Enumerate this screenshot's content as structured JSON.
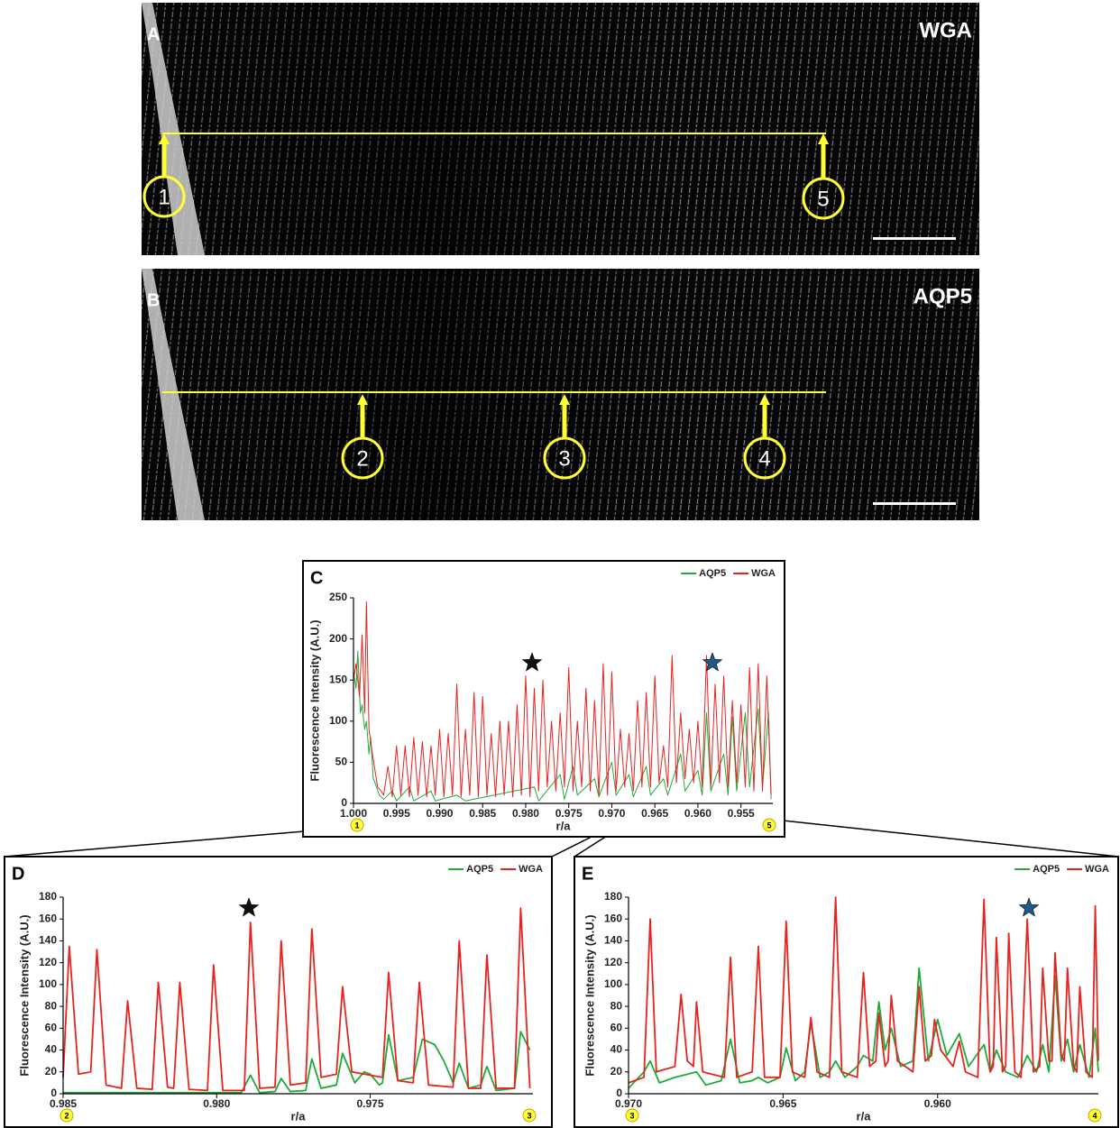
{
  "images": [
    {
      "label": "A",
      "stain": "WGA",
      "markers": [
        "1",
        "5"
      ]
    },
    {
      "label": "B",
      "stain": "AQP5",
      "markers": [
        "2",
        "3",
        "4"
      ]
    }
  ],
  "chart_data": [
    {
      "type": "line",
      "panel": "C",
      "x_label": "r/a",
      "y_label": "Fluorescence Intensity (A.U.)",
      "x_start_marker": "1",
      "x_end_marker": "5",
      "legend": "top-right",
      "xlim": [
        1.0,
        0.9513
      ],
      "ylim": [
        0,
        250
      ],
      "xticks": [
        {
          "value": 1.0,
          "label": "1.000"
        },
        0.995,
        {
          "value": 0.99,
          "label": "0.990"
        },
        0.985,
        {
          "value": 0.98,
          "label": "0.980"
        },
        0.975,
        {
          "value": 0.97,
          "label": "0.970"
        },
        0.965,
        {
          "value": 0.96,
          "label": "0.960"
        },
        0.955
      ],
      "yticks": [
        0,
        50,
        100,
        150,
        200,
        250
      ],
      "series": [
        {
          "name": "AQP5",
          "color": "#1faa3a",
          "x": [
            1.0,
            0.9997,
            0.9995,
            0.9992,
            0.999,
            0.9987,
            0.9985,
            0.9982,
            0.998,
            0.9977,
            0.9975,
            0.997,
            0.9965,
            0.9955,
            0.995,
            0.9935,
            0.993,
            0.991,
            0.9905,
            0.988,
            0.987,
            0.979,
            0.9785,
            0.976,
            0.9755,
            0.9745,
            0.974,
            0.972,
            0.9715,
            0.97,
            0.9695,
            0.968,
            0.9675,
            0.966,
            0.9655,
            0.964,
            0.9635,
            0.962,
            0.9615,
            0.96,
            0.9595,
            0.959,
            0.9585,
            0.957,
            0.9565,
            0.956,
            0.9555,
            0.9545,
            0.954,
            0.953,
            0.9525,
            0.9518,
            0.9515
          ],
          "values": [
            160,
            140,
            185,
            110,
            120,
            90,
            100,
            60,
            80,
            30,
            25,
            10,
            5,
            15,
            3,
            20,
            3,
            15,
            3,
            10,
            3,
            20,
            3,
            35,
            5,
            45,
            10,
            30,
            8,
            50,
            10,
            35,
            8,
            45,
            10,
            30,
            10,
            60,
            15,
            40,
            10,
            110,
            15,
            60,
            10,
            105,
            15,
            110,
            20,
            115,
            20,
            110,
            5
          ]
        },
        {
          "name": "WGA",
          "color": "#e8231f",
          "x": [
            1.0,
            0.9997,
            0.9993,
            0.999,
            0.9987,
            0.9985,
            0.9982,
            0.9978,
            0.9975,
            0.9972,
            0.9968,
            0.9965,
            0.996,
            0.9955,
            0.995,
            0.9945,
            0.994,
            0.9935,
            0.993,
            0.9925,
            0.992,
            0.9915,
            0.991,
            0.9905,
            0.99,
            0.9895,
            0.989,
            0.9885,
            0.988,
            0.9875,
            0.987,
            0.9865,
            0.986,
            0.9855,
            0.985,
            0.9845,
            0.984,
            0.9835,
            0.983,
            0.9825,
            0.982,
            0.9815,
            0.981,
            0.9805,
            0.98,
            0.9795,
            0.979,
            0.9785,
            0.978,
            0.9775,
            0.977,
            0.9765,
            0.976,
            0.9755,
            0.975,
            0.9745,
            0.974,
            0.9735,
            0.973,
            0.9725,
            0.972,
            0.9715,
            0.971,
            0.9705,
            0.97,
            0.9695,
            0.969,
            0.9685,
            0.968,
            0.9675,
            0.967,
            0.9665,
            0.966,
            0.9655,
            0.965,
            0.9645,
            0.964,
            0.9635,
            0.963,
            0.9625,
            0.962,
            0.9615,
            0.961,
            0.9605,
            0.96,
            0.9595,
            0.959,
            0.9585,
            0.958,
            0.9575,
            0.957,
            0.9565,
            0.956,
            0.9555,
            0.955,
            0.9545,
            0.954,
            0.9535,
            0.953,
            0.9525,
            0.952,
            0.9515
          ],
          "values": [
            150,
            170,
            130,
            205,
            110,
            245,
            90,
            60,
            40,
            20,
            15,
            10,
            45,
            8,
            70,
            10,
            70,
            8,
            80,
            10,
            75,
            8,
            70,
            10,
            90,
            8,
            85,
            10,
            145,
            8,
            90,
            10,
            135,
            8,
            130,
            10,
            85,
            8,
            100,
            10,
            100,
            8,
            120,
            10,
            155,
            8,
            140,
            15,
            150,
            20,
            100,
            15,
            110,
            20,
            165,
            15,
            100,
            20,
            140,
            15,
            125,
            10,
            170,
            10,
            160,
            15,
            90,
            20,
            85,
            15,
            125,
            20,
            135,
            20,
            155,
            25,
            70,
            20,
            180,
            25,
            110,
            30,
            90,
            25,
            100,
            20,
            180,
            20,
            145,
            25,
            155,
            20,
            125,
            25,
            120,
            20,
            165,
            15,
            170,
            15,
            155,
            10
          ]
        }
      ]
    },
    {
      "type": "line",
      "panel": "D",
      "x_label": "r/a",
      "y_label": "Fluorescence Intensity (A.U.)",
      "x_start_marker": "2",
      "x_end_marker": "3",
      "legend": "top-right",
      "xlim": [
        0.985,
        0.9697
      ],
      "ylim": [
        0,
        180
      ],
      "xticks": [
        0.985,
        {
          "value": 0.98,
          "label": "0.980"
        },
        0.975
      ],
      "yticks": [
        0,
        20,
        40,
        60,
        80,
        100,
        120,
        140,
        160,
        180
      ],
      "series": [
        {
          "name": "AQP5",
          "color": "#1faa3a",
          "x": [
            0.985,
            0.983,
            0.9792,
            0.9789,
            0.9786,
            0.9781,
            0.9779,
            0.9776,
            0.9771,
            0.9769,
            0.9766,
            0.9761,
            0.9759,
            0.9755,
            0.9752,
            0.975,
            0.9747,
            0.9746,
            0.9744,
            0.9741,
            0.9736,
            0.9733,
            0.9729,
            0.9726,
            0.9723,
            0.9721,
            0.9718,
            0.9714,
            0.9712,
            0.9709,
            0.9703,
            0.9701,
            0.9698
          ],
          "values": [
            1,
            1,
            1,
            17,
            1,
            2,
            14,
            2,
            3,
            32,
            5,
            8,
            37,
            10,
            20,
            18,
            8,
            10,
            54,
            12,
            15,
            50,
            45,
            30,
            10,
            28,
            5,
            8,
            25,
            3,
            5,
            57,
            40
          ]
        },
        {
          "name": "WGA",
          "color": "#e8231f",
          "x": [
            0.985,
            0.9848,
            0.9845,
            0.9841,
            0.9839,
            0.9836,
            0.9831,
            0.9829,
            0.9826,
            0.9821,
            0.9819,
            0.9816,
            0.9814,
            0.9812,
            0.9809,
            0.9803,
            0.9801,
            0.9798,
            0.9791,
            0.9789,
            0.9786,
            0.9781,
            0.9779,
            0.9776,
            0.9771,
            0.9769,
            0.9766,
            0.9761,
            0.9759,
            0.9756,
            0.9746,
            0.9744,
            0.9741,
            0.9736,
            0.9734,
            0.9731,
            0.9723,
            0.9721,
            0.9718,
            0.9714,
            0.9712,
            0.9709,
            0.9703,
            0.9701,
            0.9698
          ],
          "values": [
            15,
            135,
            18,
            20,
            132,
            8,
            5,
            85,
            5,
            4,
            102,
            6,
            5,
            102,
            4,
            3,
            118,
            3,
            3,
            157,
            5,
            6,
            140,
            8,
            10,
            151,
            15,
            18,
            98,
            20,
            15,
            111,
            12,
            10,
            102,
            8,
            6,
            140,
            5,
            5,
            127,
            5,
            5,
            170,
            5
          ]
        }
      ]
    },
    {
      "type": "line",
      "panel": "E",
      "x_label": "r/a",
      "y_label": "Fluorescence Intensity (A.U.)",
      "x_start_marker": "3",
      "x_end_marker": "4",
      "legend": "top-right",
      "xlim": [
        0.97,
        0.9548
      ],
      "ylim": [
        0,
        180
      ],
      "xticks": [
        {
          "value": 0.97,
          "label": "0.970"
        },
        0.965,
        {
          "value": 0.96,
          "label": "0.960"
        }
      ],
      "yticks": [
        0,
        20,
        40,
        60,
        80,
        100,
        120,
        140,
        160,
        180
      ],
      "series": [
        {
          "name": "AQP5",
          "color": "#1faa3a",
          "x": [
            0.97,
            0.9695,
            0.9693,
            0.969,
            0.9685,
            0.9678,
            0.9675,
            0.967,
            0.9667,
            0.9664,
            0.966,
            0.9658,
            0.9655,
            0.9651,
            0.9649,
            0.9646,
            0.9643,
            0.9641,
            0.9638,
            0.9635,
            0.9633,
            0.963,
            0.9626,
            0.9624,
            0.9621,
            0.9619,
            0.9617,
            0.9615,
            0.9612,
            0.9608,
            0.9606,
            0.9603,
            0.96,
            0.9597,
            0.9593,
            0.959,
            0.9585,
            0.9583,
            0.9581,
            0.9578,
            0.9574,
            0.9571,
            0.9568,
            0.9566,
            0.9564,
            0.9562,
            0.956,
            0.9558,
            0.9556,
            0.9554,
            0.9551,
            0.9549,
            0.9548
          ],
          "values": [
            5,
            20,
            30,
            10,
            15,
            20,
            8,
            12,
            50,
            10,
            12,
            15,
            10,
            15,
            42,
            12,
            20,
            65,
            15,
            20,
            30,
            15,
            25,
            35,
            30,
            84,
            40,
            60,
            25,
            30,
            115,
            30,
            68,
            35,
            55,
            25,
            45,
            20,
            40,
            20,
            15,
            35,
            20,
            45,
            20,
            108,
            30,
            50,
            20,
            45,
            15,
            60,
            20
          ]
        },
        {
          "name": "WGA",
          "color": "#e8231f",
          "x": [
            0.97,
            0.9695,
            0.9693,
            0.9691,
            0.9685,
            0.9683,
            0.9681,
            0.9679,
            0.9678,
            0.9676,
            0.9669,
            0.9667,
            0.9665,
            0.966,
            0.9658,
            0.9656,
            0.9651,
            0.9649,
            0.9647,
            0.9643,
            0.9641,
            0.9639,
            0.9635,
            0.9633,
            0.9631,
            0.9626,
            0.9624,
            0.9622,
            0.962,
            0.9619,
            0.9617,
            0.9616,
            0.9615,
            0.9613,
            0.9608,
            0.9606,
            0.9604,
            0.9602,
            0.9601,
            0.9599,
            0.9595,
            0.9593,
            0.9591,
            0.9587,
            0.9585,
            0.9583,
            0.9582,
            0.9581,
            0.9579,
            0.9578,
            0.9577,
            0.9575,
            0.9573,
            0.9571,
            0.9569,
            0.9567,
            0.9566,
            0.9564,
            0.9563,
            0.9562,
            0.956,
            0.9559,
            0.9558,
            0.9556,
            0.9555,
            0.9554,
            0.9552,
            0.955,
            0.9549,
            0.9548
          ],
          "values": [
            10,
            15,
            160,
            20,
            25,
            91,
            30,
            25,
            84,
            20,
            15,
            125,
            15,
            20,
            135,
            15,
            15,
            158,
            20,
            15,
            70,
            20,
            15,
            180,
            20,
            15,
            111,
            25,
            30,
            74,
            25,
            30,
            90,
            30,
            20,
            98,
            30,
            35,
            68,
            40,
            25,
            48,
            20,
            15,
            178,
            20,
            25,
            143,
            20,
            25,
            147,
            20,
            15,
            160,
            20,
            25,
            115,
            30,
            30,
            129,
            35,
            30,
            115,
            25,
            20,
            98,
            20,
            15,
            172,
            30
          ]
        }
      ]
    }
  ]
}
